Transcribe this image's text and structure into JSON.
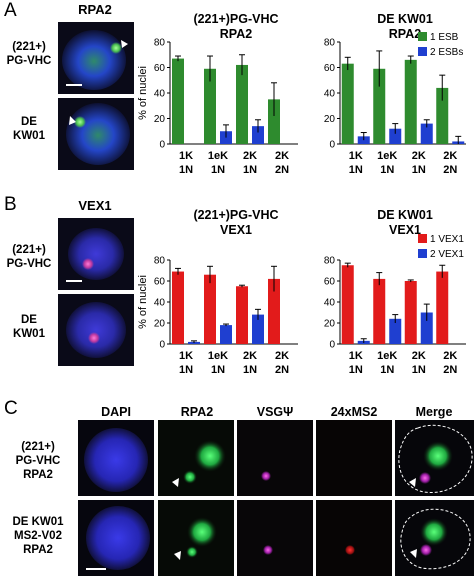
{
  "panels": {
    "A": {
      "letter": "A",
      "stain": "RPA2",
      "rows": [
        {
          "label_line1": "(221+)",
          "label_line2": "PG-VHC"
        },
        {
          "label_line1": "DE",
          "label_line2": "KW01"
        }
      ]
    },
    "B": {
      "letter": "B",
      "stain": "VEX1",
      "rows": [
        {
          "label_line1": "(221+)",
          "label_line2": "PG-VHC"
        },
        {
          "label_line1": "DE",
          "label_line2": "KW01"
        }
      ]
    },
    "C": {
      "letter": "C",
      "columns": [
        "DAPI",
        "RPA2",
        "VSGΨ",
        "24xMS2",
        "Merge"
      ],
      "rows": [
        {
          "line1": "(221+)",
          "line2": "PG-VHC",
          "line3": "RPA2"
        },
        {
          "line1": "DE KW01",
          "line2": "MS2-V02",
          "line3": "RPA2"
        }
      ]
    }
  },
  "chart_data": [
    {
      "type": "bar",
      "title_line1": "(221+)PG-VHC",
      "title_line2": "RPA2",
      "ylabel": "% of nuclei",
      "ylim": [
        0,
        80
      ],
      "yticks": [
        0,
        20,
        40,
        60,
        80
      ],
      "categories": [
        [
          "1K",
          "1N"
        ],
        [
          "1eK",
          "1N"
        ],
        [
          "2K",
          "1N"
        ],
        [
          "2K",
          "2N"
        ]
      ],
      "series": [
        {
          "name": "1 ESB",
          "color": "#2e8b2e",
          "values": [
            67,
            59,
            62,
            35
          ],
          "errors": [
            2,
            10,
            8,
            13
          ]
        },
        {
          "name": "2 ESBs",
          "color": "#1f3fd0",
          "values": [
            0,
            10,
            14,
            0
          ],
          "errors": [
            0,
            5,
            5,
            0
          ]
        }
      ]
    },
    {
      "type": "bar",
      "title_line1": "DE KW01",
      "title_line2": "RPA2",
      "ylabel": "",
      "ylim": [
        0,
        80
      ],
      "yticks": [
        0,
        20,
        40,
        60,
        80
      ],
      "categories": [
        [
          "1K",
          "1N"
        ],
        [
          "1eK",
          "1N"
        ],
        [
          "2K",
          "1N"
        ],
        [
          "2K",
          "2N"
        ]
      ],
      "legend": [
        "1 ESB",
        "2 ESBs"
      ],
      "series": [
        {
          "name": "1 ESB",
          "color": "#2e8b2e",
          "values": [
            63,
            59,
            66,
            44
          ],
          "errors": [
            5,
            14,
            3,
            10
          ]
        },
        {
          "name": "2 ESBs",
          "color": "#1f3fd0",
          "values": [
            6,
            12,
            16,
            2
          ],
          "errors": [
            3,
            4,
            3,
            4
          ]
        }
      ]
    },
    {
      "type": "bar",
      "title_line1": "(221+)PG-VHC",
      "title_line2": "VEX1",
      "ylabel": "% of nuclei",
      "ylim": [
        0,
        80
      ],
      "yticks": [
        0,
        20,
        40,
        60,
        80
      ],
      "categories": [
        [
          "1K",
          "1N"
        ],
        [
          "1eK",
          "1N"
        ],
        [
          "2K",
          "1N"
        ],
        [
          "2K",
          "2N"
        ]
      ],
      "series": [
        {
          "name": "1 VEX1",
          "color": "#e21b1b",
          "values": [
            69,
            66,
            55,
            62
          ],
          "errors": [
            3,
            8,
            1,
            12
          ]
        },
        {
          "name": "2 VEX1",
          "color": "#1f3fd0",
          "values": [
            2,
            18,
            28,
            0
          ],
          "errors": [
            1,
            1,
            5,
            0
          ]
        }
      ]
    },
    {
      "type": "bar",
      "title_line1": "DE KW01",
      "title_line2": "VEX1",
      "ylabel": "",
      "ylim": [
        0,
        80
      ],
      "yticks": [
        0,
        20,
        40,
        60,
        80
      ],
      "categories": [
        [
          "1K",
          "1N"
        ],
        [
          "1eK",
          "1N"
        ],
        [
          "2K",
          "1N"
        ],
        [
          "2K",
          "2N"
        ]
      ],
      "legend": [
        "1 VEX1",
        "2 VEX1"
      ],
      "series": [
        {
          "name": "1 VEX1",
          "color": "#e21b1b",
          "values": [
            75,
            62,
            60,
            69
          ],
          "errors": [
            2,
            6,
            1,
            6
          ]
        },
        {
          "name": "2 VEX1",
          "color": "#1f3fd0",
          "values": [
            3,
            24,
            30,
            0
          ],
          "errors": [
            2,
            4,
            8,
            0
          ]
        }
      ]
    }
  ]
}
